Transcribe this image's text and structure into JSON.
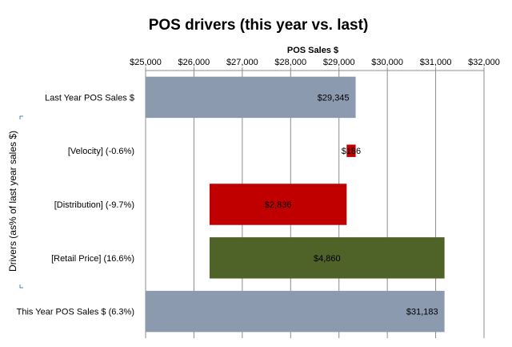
{
  "chart_data": {
    "type": "bar",
    "orientation": "horizontal",
    "subtype": "waterfall",
    "title": "POS drivers (this year vs. last)",
    "xlabel": "POS Sales  $",
    "ylabel": "Drivers (as% of last year sales $)",
    "xlim": [
      25000,
      32000
    ],
    "xticks": [
      25000,
      26000,
      27000,
      28000,
      29000,
      30000,
      31000,
      32000
    ],
    "xtick_labels": [
      "$25,000",
      "$26,000",
      "$27,000",
      "$28,000",
      "$29,000",
      "$30,000",
      "$31,000",
      "$32,000"
    ],
    "grid": true,
    "categories": [
      "Last Year POS Sales $",
      "[Velocity] (-0.6%)",
      "[Distribution] (-9.7%)",
      "[Retail Price] (16.6%)",
      "This Year POS Sales $ (6.3%)"
    ],
    "bars": [
      {
        "start": 25000,
        "end": 29345,
        "color": "#8C9AB0",
        "label": "$29,345"
      },
      {
        "start": 29159,
        "end": 29345,
        "color": "#C00000",
        "label": "$186"
      },
      {
        "start": 26323,
        "end": 29159,
        "color": "#C00000",
        "label": "$2,836"
      },
      {
        "start": 26323,
        "end": 31183,
        "color": "#4F6228",
        "label": "$4,860"
      },
      {
        "start": 25000,
        "end": 31183,
        "color": "#8C9AB0",
        "label": "$31,183"
      }
    ],
    "bar_thicknesses": [
      1,
      0.3,
      1,
      1,
      1
    ]
  }
}
